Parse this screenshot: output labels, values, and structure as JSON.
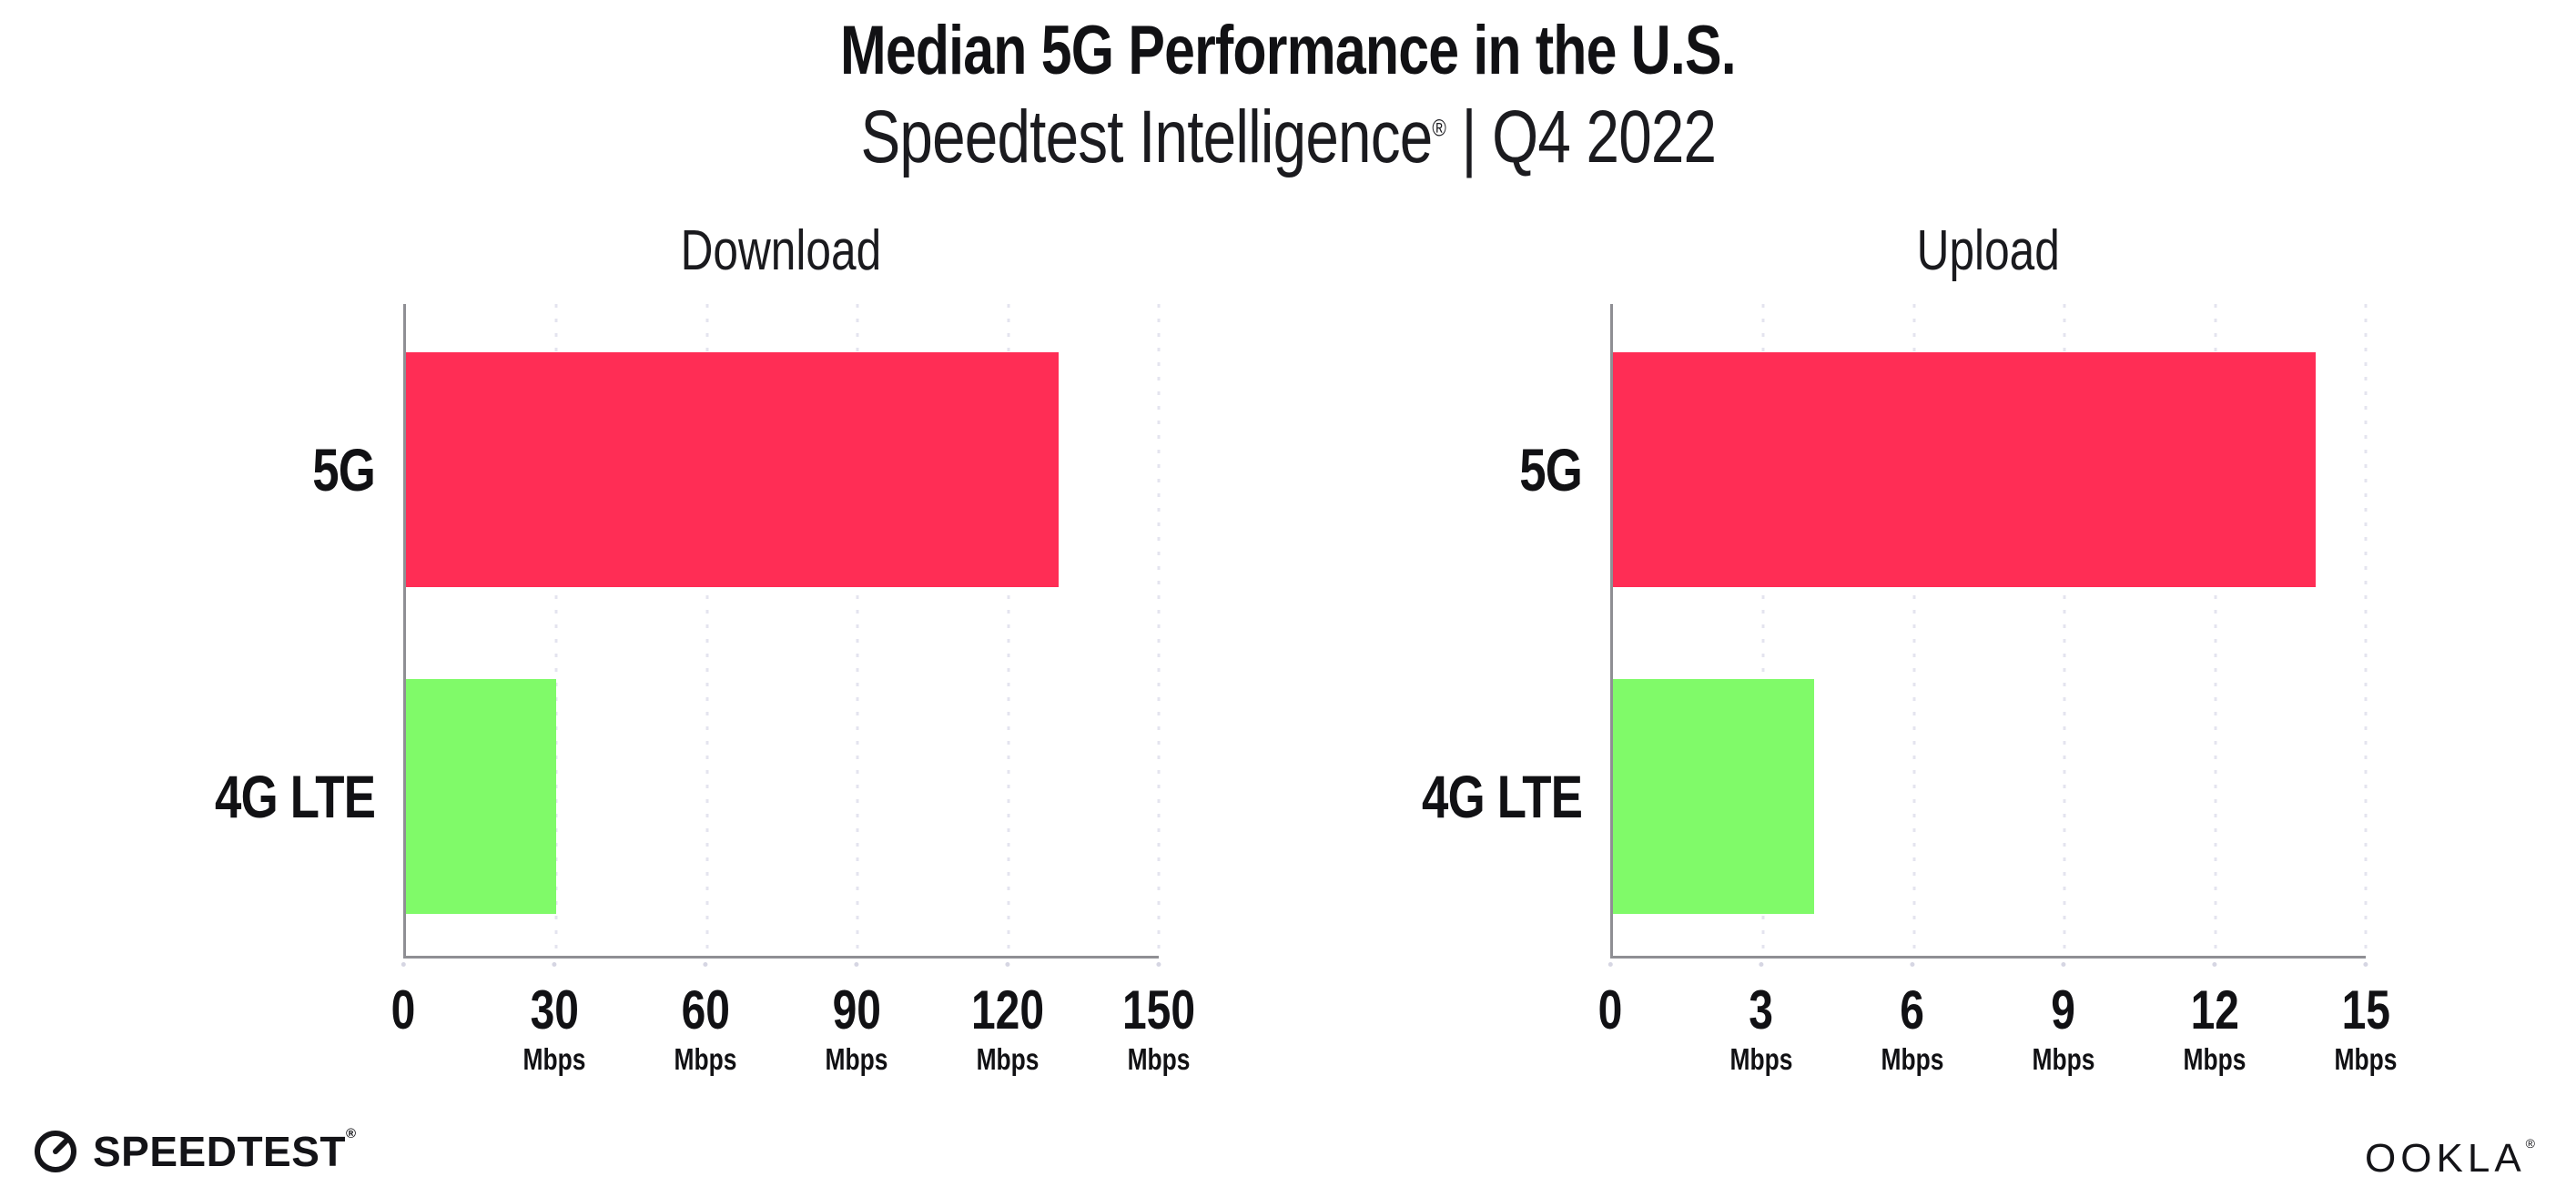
{
  "header": {
    "title": "Median 5G Performance in the U.S.",
    "subtitle_brand": "Speedtest Intelligence",
    "subtitle_reg": "®",
    "subtitle_rest": " | Q4 2022"
  },
  "chart_data": [
    {
      "type": "bar",
      "orientation": "horizontal",
      "title": "Download",
      "categories": [
        "5G",
        "4G LTE"
      ],
      "values": [
        130,
        30
      ],
      "unit": "Mbps",
      "xlim": [
        0,
        150
      ],
      "xticks": [
        0,
        30,
        60,
        90,
        120,
        150
      ],
      "ticks": [
        {
          "label": "0",
          "unit": ""
        },
        {
          "label": "30",
          "unit": "Mbps"
        },
        {
          "label": "60",
          "unit": "Mbps"
        },
        {
          "label": "90",
          "unit": "Mbps"
        },
        {
          "label": "120",
          "unit": "Mbps"
        },
        {
          "label": "150",
          "unit": "Mbps"
        }
      ],
      "bar_colors": [
        "#FF2D55",
        "#80FA69"
      ],
      "grid": "dotted-vertical-on"
    },
    {
      "type": "bar",
      "orientation": "horizontal",
      "title": "Upload",
      "categories": [
        "5G",
        "4G LTE"
      ],
      "values": [
        14,
        4
      ],
      "unit": "Mbps",
      "xlim": [
        0,
        15
      ],
      "xticks": [
        0,
        3,
        6,
        9,
        12,
        15
      ],
      "ticks": [
        {
          "label": "0",
          "unit": ""
        },
        {
          "label": "3",
          "unit": "Mbps"
        },
        {
          "label": "6",
          "unit": "Mbps"
        },
        {
          "label": "9",
          "unit": "Mbps"
        },
        {
          "label": "12",
          "unit": "Mbps"
        },
        {
          "label": "15",
          "unit": "Mbps"
        }
      ],
      "bar_colors": [
        "#FF2D55",
        "#80FA69"
      ],
      "grid": "dotted-vertical-on"
    }
  ],
  "footer": {
    "speedtest_icon": "gauge-needle-icon",
    "speedtest_label": "SPEEDTEST",
    "speedtest_reg": "®",
    "ookla_label": "OOKLA",
    "ookla_reg": "®"
  }
}
